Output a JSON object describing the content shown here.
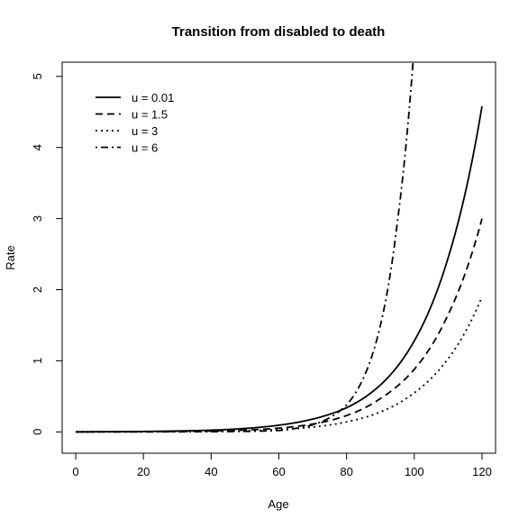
{
  "chart_data": {
    "type": "line",
    "title": "Transition from disabled to death",
    "xlabel": "Age",
    "ylabel": "Rate",
    "xlim": [
      -4,
      124
    ],
    "ylim": [
      -0.3,
      5.2
    ],
    "xticks": [
      0,
      20,
      40,
      60,
      80,
      100,
      120
    ],
    "yticks": [
      0,
      1,
      2,
      3,
      4,
      5
    ],
    "grid": false,
    "legend_position": "top-left",
    "line_color": "#000000",
    "series": [
      {
        "name": "u = 0.01",
        "dash": "solid",
        "x": [
          0,
          10,
          20,
          30,
          40,
          50,
          60,
          70,
          80,
          90,
          100,
          110,
          120
        ],
        "y": [
          0.0,
          0.003,
          0.006,
          0.013,
          0.024,
          0.048,
          0.094,
          0.18,
          0.34,
          0.66,
          1.28,
          2.45,
          4.58
        ]
      },
      {
        "name": "u = 1.5",
        "dash": "dashed",
        "x": [
          0,
          10,
          20,
          30,
          40,
          50,
          60,
          70,
          80,
          90,
          100,
          110,
          120
        ],
        "y": [
          0.0,
          0.001,
          0.003,
          0.006,
          0.012,
          0.025,
          0.053,
          0.11,
          0.23,
          0.47,
          0.88,
          1.65,
          3.0
        ]
      },
      {
        "name": "u = 3",
        "dash": "dotted",
        "x": [
          0,
          10,
          20,
          30,
          40,
          50,
          60,
          70,
          80,
          90,
          100,
          110,
          120
        ],
        "y": [
          0.0,
          0.001,
          0.002,
          0.004,
          0.008,
          0.016,
          0.033,
          0.068,
          0.14,
          0.28,
          0.55,
          1.03,
          1.9
        ]
      },
      {
        "name": "u = 6",
        "dash": "dotdash",
        "x": [
          0,
          20,
          40,
          50,
          60,
          65,
          70,
          75,
          80,
          85,
          90,
          95,
          100
        ],
        "y": [
          0.0,
          0.0,
          0.003,
          0.007,
          0.02,
          0.05,
          0.1,
          0.2,
          0.38,
          0.76,
          1.5,
          2.95,
          5.45
        ]
      }
    ]
  }
}
